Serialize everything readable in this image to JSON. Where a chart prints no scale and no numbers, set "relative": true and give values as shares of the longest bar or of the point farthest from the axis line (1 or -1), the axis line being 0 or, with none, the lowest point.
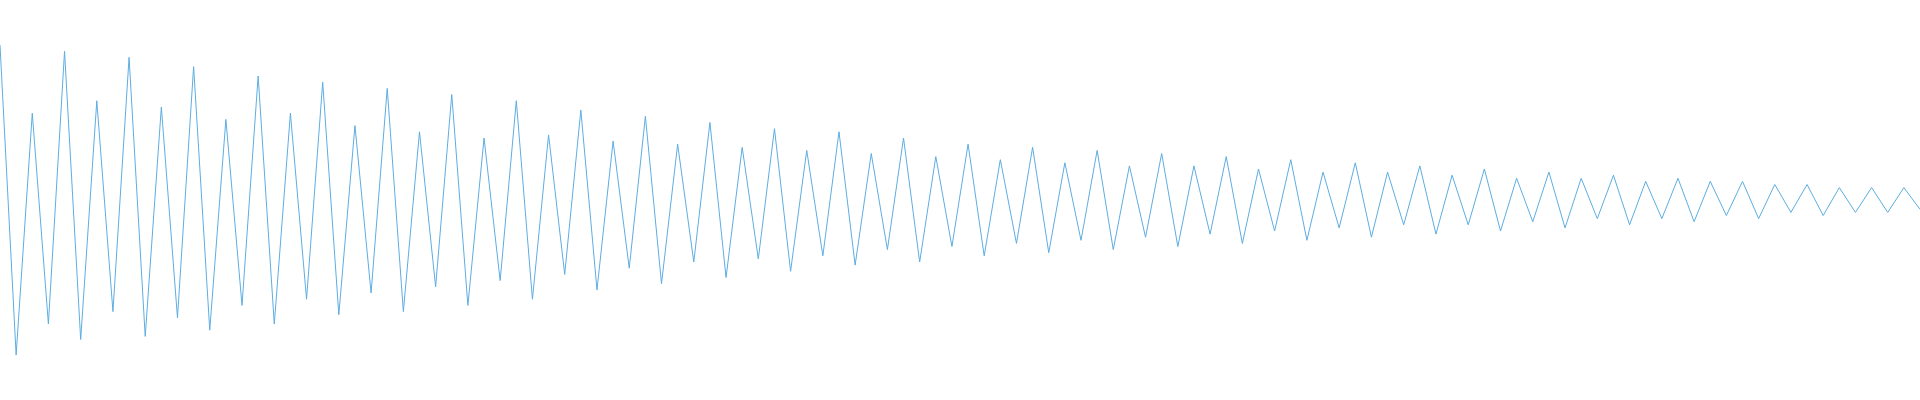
{
  "chart_data": {
    "type": "line",
    "relative": true,
    "color": "#5dade2",
    "marker": "none",
    "categories": [
      null,
      null,
      null,
      null,
      null,
      null,
      null,
      null,
      null,
      null,
      null,
      null,
      null,
      null,
      null,
      null,
      null,
      null,
      null,
      null,
      null,
      null,
      null,
      null,
      null,
      null,
      null,
      null,
      null,
      null,
      null,
      null,
      null,
      null,
      null,
      null,
      null,
      null,
      null,
      null,
      null,
      null,
      null,
      null,
      null,
      null,
      null,
      null,
      null,
      null,
      null,
      null,
      null,
      null,
      null,
      null,
      null,
      null,
      null,
      null,
      null,
      null,
      null,
      null,
      null,
      null,
      null,
      null,
      null,
      null,
      null,
      null,
      null,
      null,
      null,
      null,
      null,
      null,
      null,
      null,
      null,
      null,
      null,
      null,
      null,
      null,
      null,
      null,
      null,
      null,
      null,
      null,
      null,
      null,
      null,
      null,
      null,
      null,
      null,
      null,
      null,
      null,
      null,
      null,
      null,
      null,
      null,
      null,
      null,
      null,
      null,
      null,
      null,
      null,
      null,
      null,
      null,
      null,
      null,
      null
    ],
    "values": [
      1.0,
      0.0,
      0.78,
      0.1,
      0.98,
      0.05,
      0.82,
      0.14,
      0.96,
      0.06,
      0.8,
      0.12,
      0.93,
      0.08,
      0.76,
      0.16,
      0.9,
      0.1,
      0.78,
      0.18,
      0.88,
      0.13,
      0.74,
      0.2,
      0.86,
      0.14,
      0.72,
      0.22,
      0.84,
      0.16,
      0.7,
      0.24,
      0.82,
      0.18,
      0.71,
      0.26,
      0.79,
      0.21,
      0.69,
      0.28,
      0.77,
      0.23,
      0.68,
      0.3,
      0.75,
      0.25,
      0.67,
      0.31,
      0.73,
      0.27,
      0.66,
      0.32,
      0.72,
      0.29,
      0.65,
      0.34,
      0.7,
      0.3,
      0.64,
      0.35,
      0.68,
      0.32,
      0.63,
      0.36,
      0.67,
      0.33,
      0.62,
      0.37,
      0.66,
      0.34,
      0.61,
      0.38,
      0.65,
      0.35,
      0.61,
      0.39,
      0.64,
      0.36,
      0.6,
      0.4,
      0.63,
      0.37,
      0.59,
      0.41,
      0.62,
      0.38,
      0.59,
      0.42,
      0.61,
      0.39,
      0.58,
      0.42,
      0.6,
      0.4,
      0.57,
      0.43,
      0.59,
      0.41,
      0.57,
      0.44,
      0.58,
      0.42,
      0.56,
      0.44,
      0.57,
      0.43,
      0.56,
      0.45,
      0.56,
      0.44,
      0.55,
      0.46,
      0.55,
      0.45,
      0.54,
      0.46,
      0.54,
      0.46,
      0.54,
      0.47
    ]
  }
}
